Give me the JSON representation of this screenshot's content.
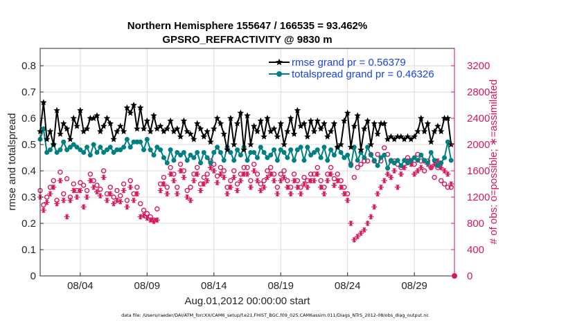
{
  "chart_data": {
    "type": "line",
    "title": "Northern Hemisphere 155647 / 166535 = 93.462%",
    "subtitle": "GPSRO_REFRACTIVITY @ 9830 m",
    "xlabel": "Aug.01,2012 00:00:00 start",
    "ylabel_left": "rmse and totalspread",
    "ylabel_right": "# of obs: o=possible; ∗=assimilated",
    "xlim": [
      1.0,
      32.0
    ],
    "ylim_left": [
      0,
      0.866
    ],
    "ylim_right": [
      0,
      3464
    ],
    "xticks": [
      4,
      9,
      14,
      19,
      24,
      29
    ],
    "xtick_labels": [
      "08/04",
      "08/09",
      "08/14",
      "08/19",
      "08/24",
      "08/29"
    ],
    "yticks_left": [
      0,
      0.1,
      0.2,
      0.3,
      0.4,
      0.5,
      0.6,
      0.7,
      0.8
    ],
    "ytick_labels_left": [
      "0",
      "0.1",
      "0.2",
      "0.3",
      "0.4",
      "0.5",
      "0.6",
      "0.7",
      "0.8"
    ],
    "yticks_right": [
      0,
      400,
      800,
      1200,
      1600,
      2000,
      2400,
      2800,
      3200
    ],
    "ytick_labels_right": [
      "0",
      "400",
      "800",
      "1200",
      "1600",
      "2000",
      "2400",
      "2800",
      "3200"
    ],
    "grid": true,
    "legend_position": "top-right",
    "colors": {
      "rmse": "#000000",
      "totalspread": "#008080",
      "obs": "#d6175c",
      "legend_text": "#1a44e0"
    },
    "series": [
      {
        "name": "rmse",
        "legend": "rmse grand pr = 0.56379",
        "axis": "left",
        "marker": "star",
        "x": [
          1.0,
          1.25,
          1.5,
          1.75,
          2.0,
          2.25,
          2.5,
          2.75,
          3.0,
          3.25,
          3.5,
          3.75,
          4.0,
          4.25,
          4.5,
          4.75,
          5.0,
          5.25,
          5.5,
          5.75,
          6.0,
          6.25,
          6.5,
          6.75,
          7.0,
          7.25,
          7.5,
          7.75,
          8.0,
          8.25,
          8.5,
          8.75,
          9.0,
          9.25,
          9.5,
          9.75,
          10.0,
          10.25,
          10.5,
          10.75,
          11.0,
          11.25,
          11.5,
          11.75,
          12.0,
          12.25,
          12.5,
          12.75,
          13.0,
          13.25,
          13.5,
          13.75,
          14.0,
          14.25,
          14.5,
          14.75,
          15.0,
          15.25,
          15.5,
          15.75,
          16.0,
          16.25,
          16.5,
          16.75,
          17.0,
          17.25,
          17.5,
          17.75,
          18.0,
          18.25,
          18.5,
          18.75,
          19.0,
          19.25,
          19.5,
          19.75,
          20.0,
          20.25,
          20.5,
          20.75,
          21.0,
          21.25,
          21.5,
          21.75,
          22.0,
          22.25,
          22.5,
          22.75,
          23.0,
          23.25,
          23.5,
          23.75,
          24.0,
          24.25,
          24.5,
          24.75,
          25.0,
          25.25,
          25.5,
          25.75,
          26.0,
          26.25,
          26.5,
          26.75,
          27.0,
          27.25,
          27.5,
          27.75,
          28.0,
          28.25,
          28.5,
          28.75,
          29.0,
          29.25,
          29.5,
          29.75,
          30.0,
          30.25,
          30.5,
          30.75,
          31.0,
          31.25,
          31.5,
          31.75
        ],
        "values": [
          0.55,
          0.66,
          0.52,
          0.55,
          0.5,
          0.63,
          0.54,
          0.58,
          0.56,
          0.52,
          0.6,
          0.57,
          0.63,
          0.55,
          0.56,
          0.6,
          0.6,
          0.61,
          0.55,
          0.57,
          0.6,
          0.58,
          0.52,
          0.55,
          0.57,
          0.55,
          0.64,
          0.62,
          0.65,
          0.56,
          0.64,
          0.56,
          0.59,
          0.55,
          0.61,
          0.56,
          0.57,
          0.55,
          0.56,
          0.59,
          0.55,
          0.56,
          0.53,
          0.59,
          0.55,
          0.54,
          0.52,
          0.58,
          0.56,
          0.53,
          0.55,
          0.51,
          0.56,
          0.6,
          0.58,
          0.54,
          0.48,
          0.6,
          0.5,
          0.58,
          0.62,
          0.48,
          0.61,
          0.5,
          0.57,
          0.55,
          0.59,
          0.53,
          0.6,
          0.55,
          0.56,
          0.53,
          0.58,
          0.5,
          0.55,
          0.6,
          0.54,
          0.63,
          0.57,
          0.58,
          0.53,
          0.59,
          0.55,
          0.59,
          0.56,
          0.58,
          0.53,
          0.55,
          0.58,
          0.49,
          0.5,
          0.59,
          0.62,
          0.49,
          0.57,
          0.61,
          0.48,
          0.56,
          0.59,
          0.5,
          0.58,
          0.54,
          0.58,
          0.58,
          0.52,
          0.53,
          0.52,
          0.53,
          0.53,
          0.52,
          0.53,
          0.52,
          0.53,
          0.55,
          0.6,
          0.55,
          0.58,
          0.51,
          0.55,
          0.57,
          0.55,
          0.6,
          0.6,
          0.5
        ]
      },
      {
        "name": "totalspread",
        "legend": "totalspread grand pr = 0.46326",
        "axis": "left",
        "marker": "circle",
        "x": [
          1.0,
          1.25,
          1.5,
          1.75,
          2.0,
          2.25,
          2.5,
          2.75,
          3.0,
          3.25,
          3.5,
          3.75,
          4.0,
          4.25,
          4.5,
          4.75,
          5.0,
          5.25,
          5.5,
          5.75,
          6.0,
          6.25,
          6.5,
          6.75,
          7.0,
          7.25,
          7.5,
          7.75,
          8.0,
          8.25,
          8.5,
          8.75,
          9.0,
          9.25,
          9.5,
          9.75,
          10.0,
          10.25,
          10.5,
          10.75,
          11.0,
          11.25,
          11.5,
          11.75,
          12.0,
          12.25,
          12.5,
          12.75,
          13.0,
          13.25,
          13.5,
          13.75,
          14.0,
          14.25,
          14.5,
          14.75,
          15.0,
          15.25,
          15.5,
          15.75,
          16.0,
          16.25,
          16.5,
          16.75,
          17.0,
          17.25,
          17.5,
          17.75,
          18.0,
          18.25,
          18.5,
          18.75,
          19.0,
          19.25,
          19.5,
          19.75,
          20.0,
          20.25,
          20.5,
          20.75,
          21.0,
          21.25,
          21.5,
          21.75,
          22.0,
          22.25,
          22.5,
          22.75,
          23.0,
          23.25,
          23.5,
          23.75,
          24.0,
          24.25,
          24.5,
          24.75,
          25.0,
          25.25,
          25.5,
          25.75,
          26.0,
          26.25,
          26.5,
          26.75,
          27.0,
          27.25,
          27.5,
          27.75,
          28.0,
          28.25,
          28.5,
          28.75,
          29.0,
          29.25,
          29.5,
          29.75,
          30.0,
          30.25,
          30.5,
          30.75,
          31.0,
          31.25,
          31.5,
          31.75
        ],
        "values": [
          0.52,
          0.56,
          0.47,
          0.48,
          0.5,
          0.47,
          0.48,
          0.51,
          0.48,
          0.49,
          0.5,
          0.49,
          0.48,
          0.47,
          0.49,
          0.46,
          0.5,
          0.47,
          0.49,
          0.47,
          0.48,
          0.49,
          0.47,
          0.48,
          0.48,
          0.49,
          0.52,
          0.49,
          0.51,
          0.51,
          0.51,
          0.48,
          0.52,
          0.48,
          0.46,
          0.49,
          0.48,
          0.45,
          0.43,
          0.48,
          0.44,
          0.47,
          0.46,
          0.47,
          0.44,
          0.46,
          0.45,
          0.47,
          0.43,
          0.47,
          0.45,
          0.43,
          0.47,
          0.49,
          0.47,
          0.44,
          0.49,
          0.47,
          0.44,
          0.48,
          0.46,
          0.49,
          0.44,
          0.47,
          0.47,
          0.45,
          0.49,
          0.47,
          0.45,
          0.46,
          0.48,
          0.44,
          0.48,
          0.47,
          0.45,
          0.48,
          0.44,
          0.48,
          0.49,
          0.44,
          0.49,
          0.46,
          0.47,
          0.48,
          0.45,
          0.49,
          0.44,
          0.48,
          0.46,
          0.49,
          0.47,
          0.45,
          0.46,
          0.42,
          0.49,
          0.44,
          0.47,
          0.45,
          0.49,
          0.46,
          0.44,
          0.42,
          0.45,
          0.46,
          0.41,
          0.44,
          0.43,
          0.44,
          0.42,
          0.44,
          0.43,
          0.44,
          0.45,
          0.44,
          0.46,
          0.44,
          0.43,
          0.47,
          0.44,
          0.42,
          0.43,
          0.45,
          0.51,
          0.44
        ]
      },
      {
        "name": "obs_possible",
        "legend": "possible",
        "axis": "right",
        "marker": "o",
        "x": [
          1.0,
          1.25,
          1.5,
          1.75,
          2.0,
          2.25,
          2.5,
          2.75,
          3.0,
          3.25,
          3.5,
          3.75,
          4.0,
          4.25,
          4.5,
          4.75,
          5.0,
          5.25,
          5.5,
          5.75,
          6.0,
          6.25,
          6.5,
          6.75,
          7.0,
          7.25,
          7.5,
          7.75,
          8.0,
          8.25,
          8.5,
          8.75,
          9.0,
          9.25,
          9.5,
          9.75,
          10.0,
          10.25,
          10.5,
          10.75,
          11.0,
          11.25,
          11.5,
          11.75,
          12.0,
          12.25,
          12.5,
          12.75,
          13.0,
          13.25,
          13.5,
          13.75,
          14.0,
          14.25,
          14.5,
          14.75,
          15.0,
          15.25,
          15.5,
          15.75,
          16.0,
          16.25,
          16.5,
          16.75,
          17.0,
          17.25,
          17.5,
          17.75,
          18.0,
          18.25,
          18.5,
          18.75,
          19.0,
          19.25,
          19.5,
          19.75,
          20.0,
          20.25,
          20.5,
          20.75,
          21.0,
          21.25,
          21.5,
          21.75,
          22.0,
          22.25,
          22.5,
          22.75,
          23.0,
          23.25,
          23.5,
          23.75,
          24.0,
          24.25,
          24.5,
          24.75,
          25.0,
          25.25,
          25.5,
          25.75,
          26.0,
          26.25,
          26.5,
          26.75,
          27.0,
          27.25,
          27.5,
          27.75,
          28.0,
          28.25,
          28.5,
          28.75,
          29.0,
          29.25,
          29.5,
          29.75,
          30.0,
          30.25,
          30.5,
          30.75,
          31.0,
          31.25,
          31.5,
          31.75
        ],
        "values": [
          1300,
          1080,
          1200,
          1350,
          1450,
          1150,
          1580,
          1250,
          1480,
          1200,
          1400,
          1300,
          1420,
          1380,
          1300,
          1550,
          1450,
          1380,
          1320,
          1600,
          1250,
          1350,
          1200,
          1300,
          1220,
          1400,
          1150,
          1450,
          1250,
          1350,
          1100,
          1000,
          950,
          900,
          850,
          1020,
          1400,
          1500,
          1350,
          1650,
          1550,
          1350,
          1700,
          1600,
          1300,
          1350,
          1550,
          1650,
          1400,
          1500,
          1550,
          1750,
          1700,
          1520,
          1650,
          1600,
          1350,
          1450,
          1600,
          1400,
          1550,
          1650,
          1650,
          1450,
          1700,
          1550,
          1400,
          1450,
          1600,
          1650,
          1550,
          1350,
          1550,
          1600,
          1450,
          1350,
          1550,
          1450,
          1350,
          1500,
          1450,
          1550,
          1550,
          1650,
          1450,
          1350,
          1550,
          1650,
          1480,
          1550,
          1450,
          1350,
          1250,
          1700,
          1500,
          1650,
          1700,
          1750,
          1750,
          1850,
          1750,
          1850,
          1750,
          1950,
          1850,
          1750,
          1750,
          1700,
          1650,
          1700,
          1800,
          1750,
          1700,
          1850,
          1750,
          1600,
          1750,
          1650,
          1500,
          1650,
          1450,
          1400,
          1350,
          1350
        ]
      },
      {
        "name": "obs_assimilated",
        "legend": "assimilated",
        "axis": "right",
        "marker": "asterisk",
        "x": [
          1.0,
          1.25,
          1.5,
          1.75,
          2.0,
          2.25,
          2.5,
          2.75,
          3.0,
          3.25,
          3.5,
          3.75,
          4.0,
          4.25,
          4.5,
          4.75,
          5.0,
          5.25,
          5.5,
          5.75,
          6.0,
          6.25,
          6.5,
          6.75,
          7.0,
          7.25,
          7.5,
          7.75,
          8.0,
          8.25,
          8.5,
          8.75,
          9.0,
          9.25,
          9.5,
          9.75,
          10.0,
          10.25,
          10.5,
          10.75,
          11.0,
          11.25,
          11.5,
          11.75,
          12.0,
          12.25,
          12.5,
          12.75,
          13.0,
          13.25,
          13.5,
          13.75,
          14.0,
          14.25,
          14.5,
          14.75,
          15.0,
          15.25,
          15.5,
          15.75,
          16.0,
          16.25,
          16.5,
          16.75,
          17.0,
          17.25,
          17.5,
          17.75,
          18.0,
          18.25,
          18.5,
          18.75,
          19.0,
          19.25,
          19.5,
          19.75,
          20.0,
          20.25,
          20.5,
          20.75,
          21.0,
          21.25,
          21.5,
          21.75,
          22.0,
          22.25,
          22.5,
          22.75,
          23.0,
          23.25,
          23.5,
          23.75,
          24.0,
          24.25,
          24.5,
          24.75,
          25.0,
          25.25,
          25.5,
          25.75,
          26.0,
          26.25,
          26.5,
          26.75,
          27.0,
          27.25,
          27.5,
          27.75,
          28.0,
          28.25,
          28.5,
          28.75,
          29.0,
          29.25,
          29.5,
          29.75,
          30.0,
          30.25,
          30.5,
          30.75,
          31.0,
          31.25,
          31.5,
          31.75
        ],
        "values": [
          1200,
          1000,
          1120,
          1250,
          1350,
          1100,
          1450,
          1150,
          900,
          1150,
          1300,
          1200,
          1300,
          1050,
          1200,
          1450,
          1350,
          1280,
          1220,
          1500,
          1150,
          1250,
          1100,
          1150,
          1130,
          1300,
          1050,
          1350,
          1150,
          1250,
          900,
          920,
          880,
          850,
          830,
          850,
          1300,
          1400,
          1250,
          1550,
          1450,
          1250,
          1600,
          1500,
          1200,
          1150,
          1450,
          1550,
          1300,
          1400,
          1450,
          1650,
          1600,
          1420,
          1550,
          1500,
          1250,
          1350,
          1500,
          1300,
          1450,
          1550,
          1550,
          1350,
          1600,
          1450,
          1300,
          1350,
          1500,
          1550,
          1450,
          1250,
          1450,
          1500,
          1350,
          1250,
          1450,
          1350,
          1250,
          1400,
          1350,
          1450,
          1450,
          1550,
          1350,
          1250,
          1450,
          1550,
          1380,
          1450,
          1350,
          1250,
          1150,
          800,
          550,
          600,
          650,
          700,
          800,
          900,
          1050,
          1250,
          1350,
          1450,
          1550,
          1500,
          1600,
          1350,
          1550,
          1650,
          1750,
          1700,
          1550,
          1600,
          1650,
          1750,
          1700,
          1650,
          1700,
          1750,
          1650,
          1600,
          1550,
          1400
        ]
      }
    ],
    "final_point": {
      "x": 32.0,
      "value": 0,
      "axis": "right"
    }
  },
  "footnote": "data file: /Users/raeder/DAI/ATM_forcXX/CAM6_setup/f.e21.FHIST_BGC.f09_025.CAM6assim.011/Diags_NTrS_2012-08/obs_diag_output.nc"
}
